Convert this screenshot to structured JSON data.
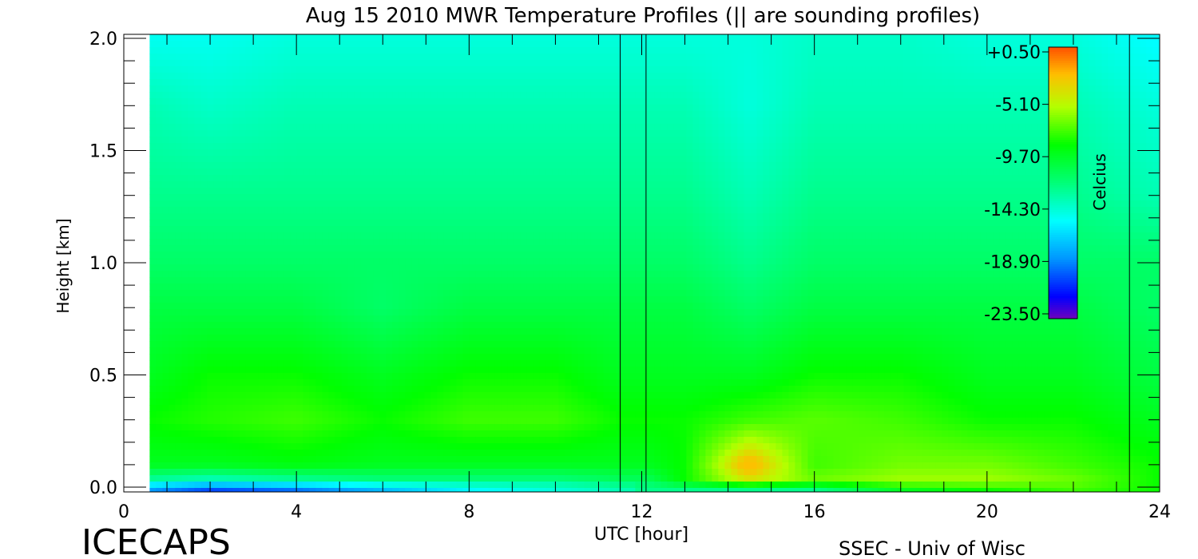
{
  "chart_data": {
    "type": "heatmap",
    "title": "Aug 15 2010 MWR Temperature Profiles (|| are sounding profiles)",
    "xlabel": "UTC [hour]",
    "ylabel": "Height [km]",
    "xlim": [
      0,
      24
    ],
    "ylim": [
      0,
      2.0
    ],
    "x_ticks": [
      "0",
      "4",
      "8",
      "12",
      "16",
      "20",
      "24"
    ],
    "y_ticks": [
      "0.0",
      "0.5",
      "1.0",
      "1.5",
      "2.0"
    ],
    "data_x_start": 0.6,
    "data_x_end": 24,
    "data_gap": [
      11.5,
      12.1
    ],
    "sounding_profiles": [
      11.5,
      12.1,
      23.3
    ],
    "colorbar": {
      "label": "Celcius",
      "min": -23.5,
      "max": 0.5,
      "ticks": [
        "+0.50",
        "-5.10",
        "-9.70",
        "-14.30",
        "-18.90",
        "-23.50"
      ]
    },
    "times": [
      0.6,
      2,
      4,
      6,
      8,
      10,
      11.5,
      12.1,
      13,
      14.5,
      16,
      18,
      20,
      22,
      24
    ],
    "heights": [
      0.0,
      0.02,
      0.1,
      0.3,
      0.5,
      0.8,
      1.0,
      1.3,
      1.7,
      2.0
    ],
    "temperatures": [
      [
        -18,
        -20,
        -19,
        -17,
        -15,
        -14,
        -13,
        -12,
        -12,
        -12,
        -12,
        -9,
        -8,
        -7,
        -8
      ],
      [
        -13,
        -14,
        -13,
        -12,
        -12,
        -12,
        -11,
        -11,
        -8,
        -4,
        -6,
        -5,
        -5,
        -6,
        -8
      ],
      [
        -9,
        -9,
        -8.5,
        -9,
        -9,
        -9,
        -9,
        -9,
        -8,
        -2,
        -7,
        -6,
        -6,
        -7,
        -8
      ],
      [
        -8,
        -7.5,
        -7,
        -8,
        -7,
        -7,
        -8,
        -8,
        -8,
        -7,
        -6.5,
        -7,
        -8,
        -8,
        -9
      ],
      [
        -9,
        -8,
        -8,
        -9,
        -8,
        -8,
        -9,
        -9,
        -9,
        -9,
        -8,
        -8,
        -9,
        -9,
        -10
      ],
      [
        -10,
        -10,
        -10,
        -11,
        -10,
        -10,
        -10,
        -10,
        -10,
        -11,
        -10,
        -10,
        -10,
        -10,
        -11
      ],
      [
        -11,
        -11,
        -11,
        -11,
        -11,
        -11,
        -11,
        -11,
        -11,
        -12,
        -11,
        -11,
        -11,
        -11,
        -11
      ],
      [
        -12,
        -12,
        -12,
        -12,
        -12,
        -12,
        -12,
        -12,
        -12,
        -13,
        -12,
        -12,
        -12,
        -12,
        -13
      ],
      [
        -13,
        -13.5,
        -13,
        -13,
        -13,
        -13,
        -13,
        -13,
        -13,
        -14,
        -13,
        -13,
        -13,
        -13,
        -14
      ],
      [
        -14.5,
        -14.5,
        -14,
        -14,
        -14,
        -14,
        -14,
        -14,
        -14,
        -14,
        -13.5,
        -13.5,
        -14,
        -14,
        -15
      ]
    ],
    "hotspot": {
      "x": 14.5,
      "height": 0.1,
      "value": -2
    },
    "footer_left": "ICECAPS",
    "footer_right": "SSEC - Univ of Wisc"
  }
}
